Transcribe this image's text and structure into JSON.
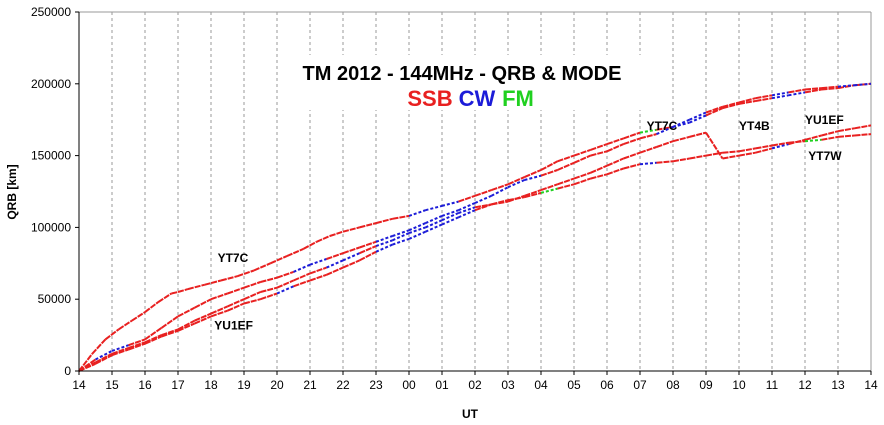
{
  "chart_data": {
    "type": "line",
    "title": "TM 2012 - 144MHz - QRB & MODE",
    "legend": [
      {
        "label": "SSB",
        "color": "#e82020"
      },
      {
        "label": "CW",
        "color": "#1c1cd8"
      },
      {
        "label": "FM",
        "color": "#20d020"
      }
    ],
    "xlabel": "UT",
    "ylabel": "QRB [km]",
    "x_ticks": [
      "14",
      "15",
      "16",
      "17",
      "18",
      "19",
      "20",
      "21",
      "22",
      "23",
      "00",
      "01",
      "02",
      "03",
      "04",
      "05",
      "06",
      "07",
      "08",
      "09",
      "10",
      "11",
      "12",
      "13",
      "14"
    ],
    "y_ticks": [
      "0",
      "50000",
      "100000",
      "150000",
      "200000",
      "250000"
    ],
    "ylim": [
      0,
      250000
    ],
    "xlim": [
      0,
      24
    ],
    "grid": "vertical dashed",
    "series": [
      {
        "name": "YT7C",
        "x": [
          0,
          0.4,
          0.8,
          1.2,
          1.6,
          2.0,
          2.4,
          2.8,
          3.0,
          3.3,
          3.8,
          4.3,
          4.8,
          5.3,
          5.8,
          6.3,
          6.8,
          7.2,
          7.6,
          8.0,
          8.5,
          9.0,
          9.5,
          10.0,
          10.5,
          11.0,
          11.5,
          12.0,
          12.5,
          13.0,
          13.5,
          14.0,
          14.5,
          15.0,
          15.5,
          16.0,
          16.5,
          17.0,
          17.5,
          18.0,
          18.5,
          19.0,
          19.5,
          20.0,
          20.5,
          21.0,
          21.5,
          22.0,
          22.5,
          23.0,
          23.5,
          24.0
        ],
        "y": [
          0,
          12000,
          22000,
          29000,
          35000,
          41000,
          48000,
          54000,
          55000,
          57000,
          60000,
          63000,
          66000,
          70000,
          75000,
          80000,
          85000,
          90000,
          94000,
          97000,
          100000,
          103000,
          106000,
          108000,
          112000,
          115000,
          118000,
          122000,
          126000,
          130000,
          135000,
          140000,
          146000,
          150000,
          154000,
          158000,
          162000,
          166000,
          168000,
          170000,
          173000,
          178000,
          183000,
          186000,
          188000,
          190000,
          192000,
          194000,
          196000,
          197000,
          199000,
          200000
        ],
        "modes": [
          "SSB",
          "SSB",
          "SSB",
          "SSB",
          "SSB",
          "SSB",
          "SSB",
          "SSB",
          "SSB",
          "SSB",
          "SSB",
          "SSB",
          "SSB",
          "SSB",
          "SSB",
          "SSB",
          "SSB",
          "SSB",
          "SSB",
          "SSB",
          "SSB",
          "SSB",
          "SSB",
          "SSB",
          "CW",
          "CW",
          "CW",
          "SSB",
          "SSB",
          "SSB",
          "SSB",
          "SSB",
          "SSB",
          "SSB",
          "SSB",
          "SSB",
          "SSB",
          "SSB",
          "FM",
          "SSB",
          "CW",
          "CW",
          "SSB",
          "SSB",
          "SSB",
          "SSB",
          "CW",
          "CW",
          "SSB",
          "SSB",
          "SSB",
          "SSB"
        ]
      },
      {
        "name": "YT4B",
        "x": [
          0,
          0.5,
          1.0,
          1.5,
          2.0,
          2.5,
          3.0,
          3.5,
          4.0,
          4.5,
          5.0,
          5.5,
          6.0,
          6.5,
          7.0,
          7.5,
          8.0,
          8.5,
          9.0,
          9.5,
          10.0,
          10.5,
          11.0,
          11.5,
          12.0,
          12.5,
          13.0,
          13.5,
          14.0,
          14.5,
          15.0,
          15.5,
          16.0,
          16.5,
          17.0,
          17.5,
          18.0,
          18.5,
          19.0,
          19.5,
          20.0,
          20.5,
          21.0,
          21.5,
          22.0,
          22.5,
          23.0,
          23.5,
          24.0
        ],
        "y": [
          0,
          8000,
          14000,
          18000,
          22000,
          30000,
          38000,
          44000,
          50000,
          54000,
          58000,
          62000,
          65000,
          69000,
          74000,
          78000,
          82000,
          86000,
          90000,
          94000,
          98000,
          103000,
          108000,
          112000,
          117000,
          122000,
          128000,
          133000,
          136000,
          140000,
          145000,
          150000,
          153000,
          158000,
          162000,
          165000,
          170000,
          175000,
          180000,
          184000,
          187000,
          190000,
          192000,
          194000,
          196000,
          197000,
          198000,
          199000,
          200000
        ],
        "modes": [
          "SSB",
          "SSB",
          "CW",
          "CW",
          "SSB",
          "SSB",
          "SSB",
          "SSB",
          "SSB",
          "SSB",
          "SSB",
          "SSB",
          "SSB",
          "SSB",
          "CW",
          "CW",
          "SSB",
          "SSB",
          "SSB",
          "CW",
          "CW",
          "CW",
          "CW",
          "CW",
          "CW",
          "CW",
          "CW",
          "CW",
          "CW",
          "SSB",
          "SSB",
          "SSB",
          "SSB",
          "SSB",
          "SSB",
          "SSB",
          "CW",
          "CW",
          "CW",
          "SSB",
          "SSB",
          "SSB",
          "SSB",
          "CW",
          "SSB",
          "SSB",
          "SSB",
          "CW",
          "CW"
        ]
      },
      {
        "name": "YU1EF",
        "x": [
          0,
          0.5,
          1.0,
          1.5,
          2.0,
          2.5,
          3.0,
          3.5,
          4.0,
          4.5,
          5.0,
          5.5,
          6.0,
          6.5,
          7.0,
          7.5,
          8.0,
          8.5,
          9.0,
          9.5,
          10.0,
          10.5,
          11.0,
          11.5,
          12.0,
          12.5,
          13.0,
          13.5,
          14.0,
          14.5,
          15.0,
          15.5,
          16.0,
          16.5,
          17.0,
          17.5,
          18.0,
          18.5,
          19.0,
          19.5,
          20.0,
          20.5,
          21.0,
          21.5,
          22.0,
          22.5,
          23.0,
          23.5,
          24.0
        ],
        "y": [
          0,
          6000,
          12000,
          16000,
          20000,
          25000,
          29000,
          35000,
          40000,
          45000,
          50000,
          55000,
          58000,
          63000,
          68000,
          72000,
          77000,
          82000,
          87000,
          91000,
          96000,
          100000,
          105000,
          110000,
          114000,
          116000,
          118000,
          122000,
          126000,
          130000,
          134000,
          138000,
          143000,
          148000,
          152000,
          156000,
          160000,
          163000,
          166000,
          148000,
          150000,
          152000,
          155000,
          158000,
          161000,
          164000,
          167000,
          169000,
          171000
        ],
        "modes": [
          "SSB",
          "SSB",
          "SSB",
          "SSB",
          "SSB",
          "SSB",
          "SSB",
          "SSB",
          "SSB",
          "SSB",
          "SSB",
          "SSB",
          "SSB",
          "SSB",
          "SSB",
          "SSB",
          "CW",
          "CW",
          "SSB",
          "CW",
          "CW",
          "CW",
          "CW",
          "CW",
          "CW",
          "SSB",
          "SSB",
          "SSB",
          "SSB",
          "SSB",
          "SSB",
          "SSB",
          "SSB",
          "SSB",
          "SSB",
          "SSB",
          "SSB",
          "SSB",
          "SSB",
          "SSB",
          "SSB",
          "SSB",
          "SSB",
          "CW",
          "SSB",
          "SSB",
          "SSB",
          "SSB",
          "SSB"
        ]
      },
      {
        "name": "YT7W",
        "x": [
          0,
          0.5,
          1.0,
          1.5,
          2.0,
          2.5,
          3.0,
          3.5,
          4.0,
          4.5,
          5.0,
          5.5,
          6.0,
          6.5,
          7.0,
          7.5,
          8.0,
          8.5,
          9.0,
          9.5,
          10.0,
          10.5,
          11.0,
          11.5,
          12.0,
          12.5,
          13.0,
          13.5,
          14.0,
          14.5,
          15.0,
          15.5,
          16.0,
          16.5,
          17.0,
          17.5,
          18.0,
          18.5,
          19.0,
          19.5,
          20.0,
          20.5,
          21.0,
          21.5,
          22.0,
          22.5,
          23.0,
          23.5,
          24.0
        ],
        "y": [
          0,
          5000,
          11000,
          15000,
          19000,
          24000,
          28000,
          33000,
          38000,
          42000,
          47000,
          50000,
          54000,
          59000,
          63000,
          67000,
          72000,
          77000,
          83000,
          88000,
          92000,
          97000,
          102000,
          107000,
          112000,
          116000,
          119000,
          121000,
          124000,
          127000,
          130000,
          134000,
          137000,
          141000,
          144000,
          145000,
          146000,
          148000,
          150000,
          152000,
          153000,
          155000,
          157000,
          159000,
          160000,
          161000,
          163000,
          164000,
          165000
        ],
        "modes": [
          "SSB",
          "SSB",
          "SSB",
          "SSB",
          "SSB",
          "SSB",
          "SSB",
          "SSB",
          "SSB",
          "SSB",
          "SSB",
          "SSB",
          "SSB",
          "CW",
          "SSB",
          "SSB",
          "SSB",
          "SSB",
          "SSB",
          "CW",
          "CW",
          "CW",
          "CW",
          "CW",
          "CW",
          "SSB",
          "SSB",
          "SSB",
          "SSB",
          "FM",
          "SSB",
          "SSB",
          "SSB",
          "SSB",
          "SSB",
          "CW",
          "SSB",
          "SSB",
          "SSB",
          "SSB",
          "SSB",
          "SSB",
          "SSB",
          "SSB",
          "SSB",
          "FM",
          "SSB",
          "SSB",
          "SSB"
        ]
      }
    ],
    "annotations": [
      {
        "text": "YT7C",
        "x": 4.2,
        "y": 76000
      },
      {
        "text": "YU1EF",
        "x": 4.1,
        "y": 29000
      },
      {
        "text": "YT7C",
        "x": 17.2,
        "y": 168000
      },
      {
        "text": "YT4B",
        "x": 20.0,
        "y": 168000
      },
      {
        "text": "YU1EF",
        "x": 22.0,
        "y": 172000
      },
      {
        "text": "YT7W",
        "x": 22.1,
        "y": 147000
      }
    ]
  }
}
